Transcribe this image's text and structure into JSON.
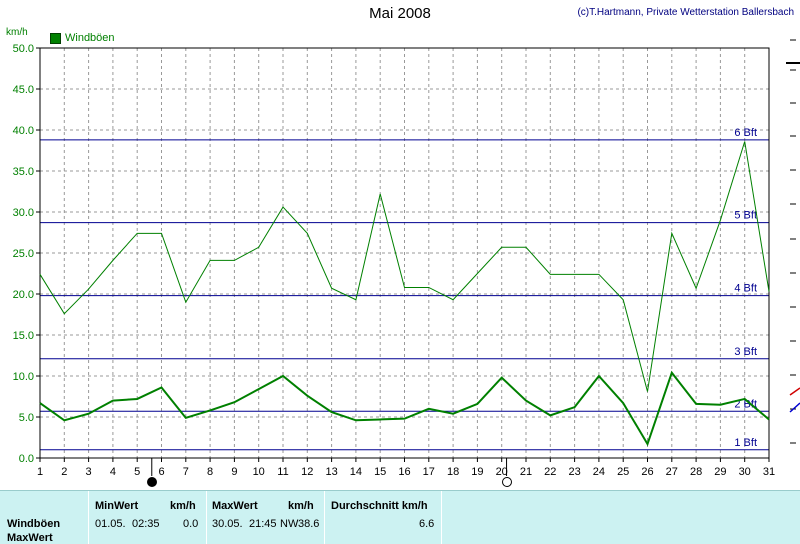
{
  "header": {
    "title": "Mai 2008",
    "copyright": "(c)T.Hartmann, Private Wetterstation Ballersbach",
    "unit": "km/h"
  },
  "chart_data": {
    "type": "line",
    "title": "Mai 2008",
    "ylabel": "km/h",
    "xlabel": "",
    "x": [
      1,
      2,
      3,
      4,
      5,
      6,
      7,
      8,
      9,
      10,
      11,
      12,
      13,
      14,
      15,
      16,
      17,
      18,
      19,
      20,
      21,
      22,
      23,
      24,
      25,
      26,
      27,
      28,
      29,
      30,
      31
    ],
    "xlim": [
      1,
      31
    ],
    "ylim": [
      0,
      50
    ],
    "yticks": [
      "0.0",
      "5.0",
      "10.0",
      "15.0",
      "20.0",
      "25.0",
      "30.0",
      "35.0",
      "40.0",
      "45.0",
      "50.0"
    ],
    "grid": true,
    "legend_position": "top-left",
    "series": [
      {
        "name": "Windböen",
        "color": "#008000",
        "values": [
          6.7,
          4.6,
          5.4,
          7.0,
          7.2,
          8.6,
          4.9,
          5.8,
          6.8,
          8.4,
          10.0,
          7.6,
          5.6,
          4.6,
          4.7,
          4.8,
          6.0,
          5.4,
          6.6,
          9.8,
          7.0,
          5.2,
          6.2,
          10.0,
          6.7,
          1.7,
          10.4,
          6.6,
          6.5,
          7.2,
          4.7
        ]
      },
      {
        "name": "MaxWert",
        "color": "#008000",
        "values": [
          22.4,
          17.6,
          20.6,
          24.1,
          27.4,
          27.4,
          19.0,
          24.1,
          24.1,
          25.7,
          30.6,
          27.4,
          20.7,
          19.3,
          32.2,
          20.8,
          20.8,
          19.3,
          22.5,
          25.7,
          25.7,
          22.4,
          22.4,
          22.4,
          19.3,
          8.1,
          27.4,
          20.7,
          29.0,
          38.6,
          20.3
        ]
      }
    ],
    "reference_lines": [
      {
        "label": "1 Bft",
        "value": 1.0
      },
      {
        "label": "2 Bft",
        "value": 5.7
      },
      {
        "label": "3 Bft",
        "value": 12.1
      },
      {
        "label": "4 Bft",
        "value": 19.8
      },
      {
        "label": "5 Bft",
        "value": 28.7
      },
      {
        "label": "6 Bft",
        "value": 38.8
      }
    ],
    "moon_phase_markers": [
      {
        "day": 5.6,
        "phase": "new"
      },
      {
        "day": 20.2,
        "phase": "full"
      }
    ]
  },
  "summary_table": {
    "headers": {
      "min_label": "MinWert",
      "min_unit": "km/h",
      "max_label": "MaxWert",
      "max_unit": "km/h",
      "avg_label": "Durchschnitt km/h"
    },
    "rows": [
      {
        "name": "Windböen",
        "min_date": "01.05.",
        "min_time": "02:35",
        "min_value": "0.0",
        "max_date": "30.05.",
        "max_time": "21:45",
        "max_dir": "NW",
        "max_value": "38.6",
        "avg": "6.6"
      },
      {
        "name": "MaxWert"
      }
    ]
  }
}
